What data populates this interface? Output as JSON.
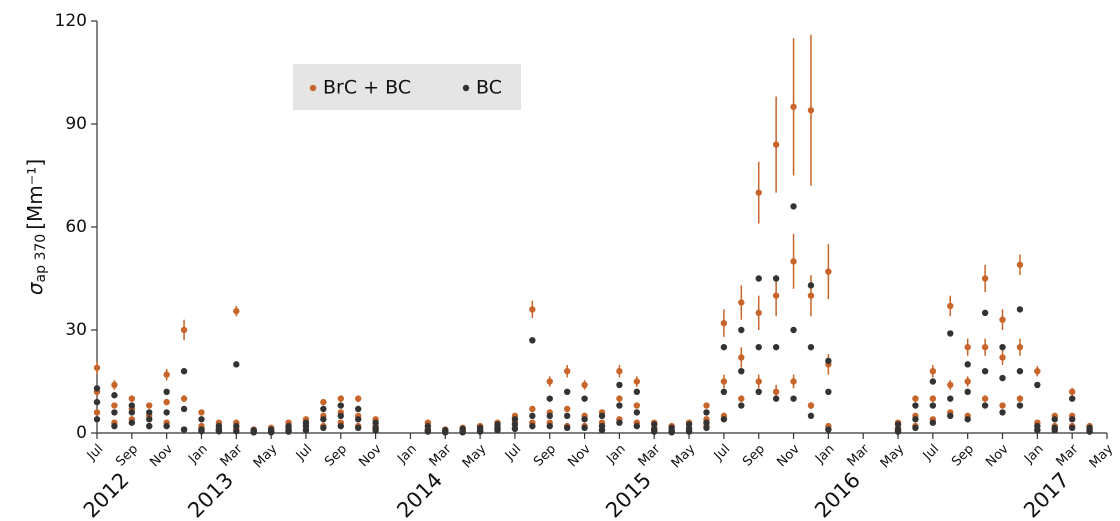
{
  "chart_data": {
    "type": "scatter",
    "y_label": {
      "symbol": "σ",
      "subscript": "ap 370",
      "unit": "[Mm⁻¹]"
    },
    "xlim": [
      "2012-07",
      "2017-05"
    ],
    "ylim": [
      0,
      120
    ],
    "yticks": [
      0,
      30,
      60,
      90,
      120
    ],
    "xticks": [
      {
        "value": "2012-07",
        "label": "Jul"
      },
      {
        "value": "2012-09",
        "label": "Sep"
      },
      {
        "value": "2012-11",
        "label": "Nov"
      },
      {
        "value": "2013-01",
        "label": "Jan"
      },
      {
        "value": "2013-03",
        "label": "Mar"
      },
      {
        "value": "2013-05",
        "label": "May"
      },
      {
        "value": "2013-07",
        "label": "Jul"
      },
      {
        "value": "2013-09",
        "label": "Sep"
      },
      {
        "value": "2013-11",
        "label": "Nov"
      },
      {
        "value": "2014-01",
        "label": "Jan"
      },
      {
        "value": "2014-03",
        "label": "Mar"
      },
      {
        "value": "2014-05",
        "label": "May"
      },
      {
        "value": "2014-07",
        "label": "Jul"
      },
      {
        "value": "2014-09",
        "label": "Sep"
      },
      {
        "value": "2014-11",
        "label": "Nov"
      },
      {
        "value": "2015-01",
        "label": "Jan"
      },
      {
        "value": "2015-03",
        "label": "Mar"
      },
      {
        "value": "2015-05",
        "label": "May"
      },
      {
        "value": "2015-07",
        "label": "Jul"
      },
      {
        "value": "2015-09",
        "label": "Sep"
      },
      {
        "value": "2015-11",
        "label": "Nov"
      },
      {
        "value": "2016-01",
        "label": "Jan"
      },
      {
        "value": "2016-03",
        "label": "Mar"
      },
      {
        "value": "2016-05",
        "label": "May"
      },
      {
        "value": "2016-07",
        "label": "Jul"
      },
      {
        "value": "2016-09",
        "label": "Sep"
      },
      {
        "value": "2016-11",
        "label": "Nov"
      },
      {
        "value": "2017-01",
        "label": "Jan"
      },
      {
        "value": "2017-03",
        "label": "Mar"
      },
      {
        "value": "2017-05",
        "label": "May"
      }
    ],
    "year_labels": [
      {
        "value": "2012-09",
        "label": "2012"
      },
      {
        "value": "2013-03",
        "label": "2013"
      },
      {
        "value": "2014-03",
        "label": "2014"
      },
      {
        "value": "2015-03",
        "label": "2015"
      },
      {
        "value": "2016-03",
        "label": "2016"
      },
      {
        "value": "2017-03",
        "label": "2017"
      }
    ],
    "legend": "upper left",
    "x": [
      "2012-07",
      "2012-07",
      "2012-07",
      "2012-08",
      "2012-08",
      "2012-08",
      "2012-09",
      "2012-09",
      "2012-09",
      "2012-10",
      "2012-10",
      "2012-10",
      "2012-11",
      "2012-11",
      "2012-11",
      "2012-12",
      "2012-12",
      "2012-12",
      "2013-01",
      "2013-01",
      "2013-01",
      "2013-02",
      "2013-02",
      "2013-02",
      "2013-03",
      "2013-03",
      "2013-03",
      "2013-04",
      "2013-04",
      "2013-04",
      "2013-05",
      "2013-05",
      "2013-05",
      "2013-06",
      "2013-06",
      "2013-06",
      "2013-07",
      "2013-07",
      "2013-07",
      "2013-08",
      "2013-08",
      "2013-08",
      "2013-09",
      "2013-09",
      "2013-09",
      "2013-10",
      "2013-10",
      "2013-10",
      "2013-11",
      "2013-11",
      "2013-11",
      "2014-02",
      "2014-02",
      "2014-02",
      "2014-03",
      "2014-03",
      "2014-03",
      "2014-04",
      "2014-04",
      "2014-04",
      "2014-05",
      "2014-05",
      "2014-05",
      "2014-06",
      "2014-06",
      "2014-06",
      "2014-07",
      "2014-07",
      "2014-07",
      "2014-08",
      "2014-08",
      "2014-08",
      "2014-09",
      "2014-09",
      "2014-09",
      "2014-10",
      "2014-10",
      "2014-10",
      "2014-11",
      "2014-11",
      "2014-11",
      "2014-12",
      "2014-12",
      "2014-12",
      "2015-01",
      "2015-01",
      "2015-01",
      "2015-02",
      "2015-02",
      "2015-02",
      "2015-03",
      "2015-03",
      "2015-03",
      "2015-04",
      "2015-04",
      "2015-04",
      "2015-05",
      "2015-05",
      "2015-05",
      "2015-06",
      "2015-06",
      "2015-06",
      "2015-07",
      "2015-07",
      "2015-07",
      "2015-08",
      "2015-08",
      "2015-08",
      "2015-09",
      "2015-09",
      "2015-09",
      "2015-10",
      "2015-10",
      "2015-10",
      "2015-11",
      "2015-11",
      "2015-11",
      "2015-12",
      "2015-12",
      "2015-12",
      "2016-01",
      "2016-01",
      "2016-01",
      "2016-05",
      "2016-05",
      "2016-05",
      "2016-06",
      "2016-06",
      "2016-06",
      "2016-07",
      "2016-07",
      "2016-07",
      "2016-08",
      "2016-08",
      "2016-08",
      "2016-09",
      "2016-09",
      "2016-09",
      "2016-10",
      "2016-10",
      "2016-10",
      "2016-11",
      "2016-11",
      "2016-11",
      "2016-12",
      "2016-12",
      "2016-12",
      "2017-01",
      "2017-01",
      "2017-01",
      "2017-02",
      "2017-02",
      "2017-02",
      "2017-03",
      "2017-03",
      "2017-03",
      "2017-04",
      "2017-04",
      "2017-04"
    ],
    "series": [
      {
        "name": "BrC + BC",
        "color": "#c8652a",
        "values": [
          6,
          12,
          19,
          3,
          8,
          14,
          4,
          7,
          10,
          2,
          5,
          8,
          3,
          9,
          17,
          1,
          10,
          30,
          1,
          2,
          6,
          0.5,
          1,
          3,
          1,
          3,
          35.5,
          0.3,
          0.5,
          1,
          0.3,
          0.6,
          1.5,
          0.5,
          1.5,
          3,
          1,
          2.5,
          4,
          2,
          5,
          9,
          3,
          6,
          10,
          2,
          5,
          10,
          1,
          2,
          4,
          0.5,
          1,
          3,
          0.3,
          0.6,
          1,
          0.3,
          0.8,
          1.5,
          0.5,
          1,
          2,
          1,
          1.8,
          3,
          1.5,
          3,
          5,
          3,
          7,
          36,
          3,
          6,
          15,
          2,
          7,
          18,
          2,
          5,
          14,
          1,
          3,
          6,
          4,
          10,
          18,
          3,
          8,
          15,
          0.5,
          1.5,
          3,
          0.3,
          0.8,
          2,
          0.5,
          1.5,
          3,
          2,
          4,
          8,
          5,
          15,
          32,
          10,
          22,
          38,
          15,
          35,
          70,
          12,
          40,
          84,
          15,
          50,
          95,
          8,
          40,
          94,
          2,
          20,
          47,
          0.5,
          1.5,
          3,
          2,
          5,
          10,
          4,
          10,
          18,
          6,
          14,
          37,
          5,
          15,
          25,
          10,
          25,
          45,
          8,
          22,
          33,
          10,
          25,
          49,
          1,
          3,
          18,
          1,
          2,
          5,
          2,
          5,
          12,
          0.5,
          1,
          2
        ],
        "errors": [
          0.6,
          1.2,
          1.9,
          0.3,
          0.8,
          1.4,
          0.4,
          0.7,
          1,
          0.2,
          0.5,
          0.8,
          0.3,
          0.9,
          1.7,
          0.1,
          1,
          3,
          0.1,
          0.2,
          0.6,
          0.1,
          0.1,
          0.3,
          0.1,
          0.3,
          1.5,
          0.1,
          0.1,
          0.1,
          0.1,
          0.1,
          0.2,
          0.1,
          0.2,
          0.3,
          0.1,
          0.3,
          0.4,
          0.2,
          0.5,
          0.9,
          0.3,
          0.6,
          1,
          0.2,
          0.5,
          1,
          0.1,
          0.2,
          0.4,
          0.1,
          0.1,
          0.3,
          0.1,
          0.1,
          0.1,
          0.1,
          0.1,
          0.2,
          0.1,
          0.1,
          0.2,
          0.1,
          0.2,
          0.3,
          0.2,
          0.3,
          0.5,
          0.3,
          0.7,
          2.5,
          0.3,
          0.6,
          1.5,
          0.2,
          0.7,
          1.8,
          0.2,
          0.5,
          1.4,
          0.1,
          0.3,
          0.6,
          0.4,
          1,
          1.8,
          0.3,
          0.8,
          1.5,
          0.1,
          0.2,
          0.3,
          0.1,
          0.1,
          0.2,
          0.1,
          0.2,
          0.3,
          0.2,
          0.4,
          0.8,
          0.5,
          2,
          4,
          1,
          3,
          5,
          2,
          5,
          9,
          2,
          6,
          14,
          2,
          8,
          20,
          1,
          6,
          22,
          0.3,
          3,
          8,
          0.1,
          0.2,
          0.3,
          0.2,
          0.5,
          1,
          0.4,
          1,
          1.8,
          0.6,
          1.4,
          3,
          0.5,
          1.5,
          2.5,
          1,
          2.5,
          4,
          0.8,
          2.2,
          3,
          1,
          2.5,
          3,
          0.1,
          0.3,
          1.5,
          0.1,
          0.2,
          0.5,
          0.2,
          0.5,
          1.2,
          0.1,
          0.1,
          0.2
        ]
      },
      {
        "name": "BC",
        "color": "#333333",
        "values": [
          4,
          9,
          13,
          2,
          6,
          11,
          3,
          6,
          8,
          2,
          4,
          6,
          2,
          6,
          12,
          1,
          7,
          18,
          0.5,
          1,
          4,
          0.5,
          1,
          2,
          0.5,
          2,
          20,
          0.2,
          0.4,
          0.8,
          0.2,
          0.4,
          1,
          0.4,
          1,
          2,
          0.8,
          2,
          3,
          1.5,
          4,
          7,
          2,
          5,
          8,
          1.5,
          4,
          7,
          0.8,
          1.5,
          3,
          0.4,
          0.8,
          2,
          0.2,
          0.5,
          0.8,
          0.2,
          0.6,
          1.2,
          0.4,
          0.8,
          1.5,
          0.8,
          1.4,
          2.5,
          1.2,
          2.5,
          4,
          2,
          5,
          27,
          2,
          5,
          10,
          1.5,
          5,
          12,
          1.5,
          4,
          10,
          0.8,
          2,
          5,
          3,
          8,
          14,
          2,
          6,
          12,
          0.4,
          1,
          2.5,
          0.2,
          0.6,
          1.5,
          0.4,
          1.2,
          2.5,
          1.5,
          3,
          6,
          4,
          12,
          25,
          8,
          18,
          30,
          12,
          25,
          45,
          10,
          25,
          45,
          10,
          30,
          66,
          5,
          25,
          43,
          1,
          12,
          21,
          0.4,
          1,
          2.5,
          1.5,
          4,
          8,
          3,
          8,
          15,
          5,
          10,
          29,
          4,
          12,
          20,
          8,
          18,
          35,
          6,
          16,
          25,
          8,
          18,
          36,
          0.8,
          2,
          14,
          0.8,
          1.5,
          4,
          1.5,
          4,
          10,
          0.4,
          0.8,
          1.5
        ]
      }
    ]
  }
}
